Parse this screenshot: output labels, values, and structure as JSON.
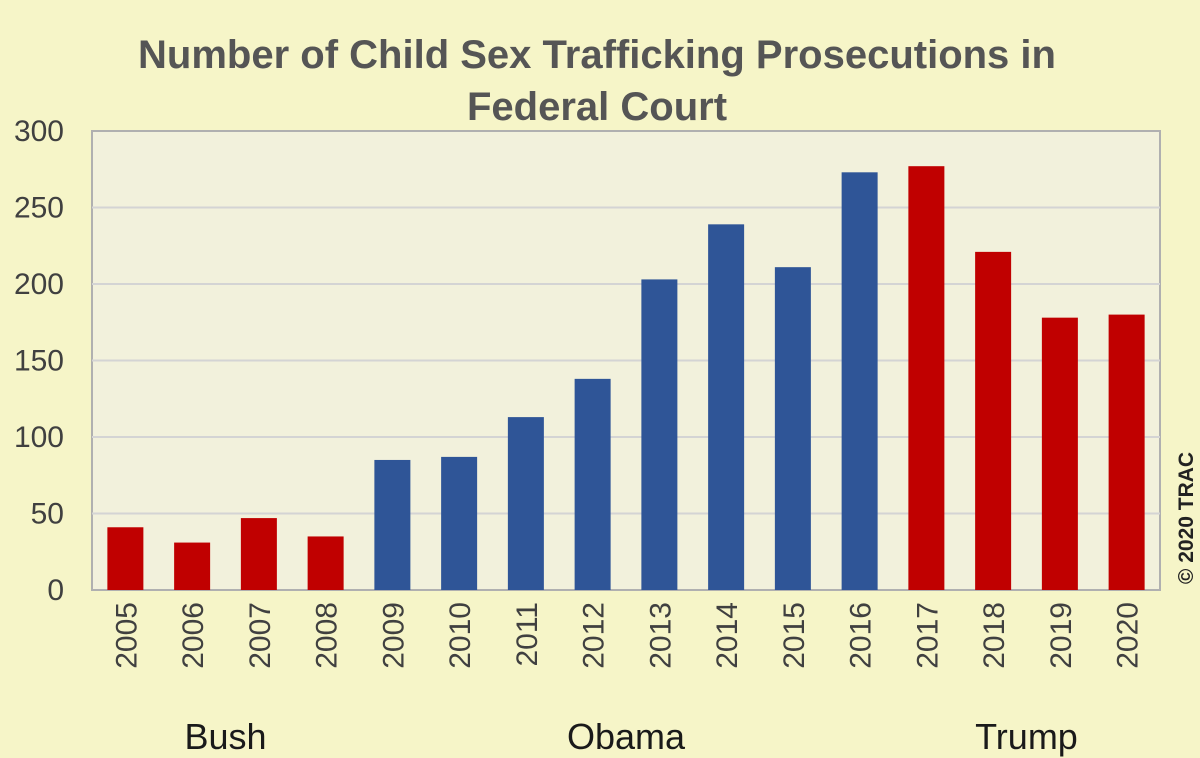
{
  "chart_data": {
    "type": "bar",
    "title_lines": [
      "Number of Child Sex Trafficking Prosecutions in",
      "Federal Court"
    ],
    "categories": [
      "2005",
      "2006",
      "2007",
      "2008",
      "2009",
      "2010",
      "2011",
      "2012",
      "2013",
      "2014",
      "2015",
      "2016",
      "2017",
      "2018",
      "2019",
      "2020"
    ],
    "values": [
      41,
      31,
      47,
      35,
      85,
      87,
      113,
      138,
      203,
      239,
      211,
      273,
      277,
      221,
      178,
      180
    ],
    "administration": [
      "Bush",
      "Bush",
      "Bush",
      "Bush",
      "Obama",
      "Obama",
      "Obama",
      "Obama",
      "Obama",
      "Obama",
      "Obama",
      "Obama",
      "Trump",
      "Trump",
      "Trump",
      "Trump"
    ],
    "colors": {
      "Bush": "#c00000",
      "Obama": "#2f5597",
      "Trump": "#c00000"
    },
    "ylim": [
      0,
      300
    ],
    "yticks": [
      0,
      50,
      100,
      150,
      200,
      250,
      300
    ],
    "group_labels": [
      "Bush",
      "Obama",
      "Trump"
    ],
    "xlabel": "",
    "ylabel": "",
    "grid": true,
    "credit": "© 2020 TRAC"
  }
}
